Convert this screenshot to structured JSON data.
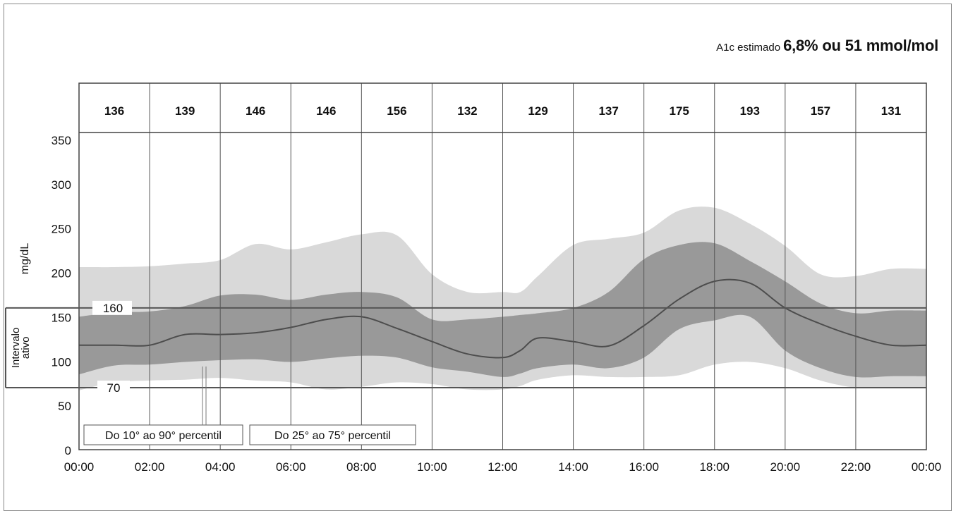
{
  "header": {
    "a1c_label": "A1c estimado",
    "a1c_value": "6,8% ou 51 mmol/mol"
  },
  "colors": {
    "band_outer": "#d9d9d9",
    "band_inner": "#999999",
    "median_line": "#4d4d4d",
    "grid": "#555555"
  },
  "chart_data": {
    "type": "area",
    "title": "",
    "ylabel": "mg/dL",
    "xlabel": "",
    "ylim": [
      0,
      375
    ],
    "yticks": [
      "0",
      "50",
      "100",
      "150",
      "200",
      "250",
      "300",
      "350"
    ],
    "xticks": [
      "00:00",
      "02:00",
      "04:00",
      "06:00",
      "08:00",
      "10:00",
      "12:00",
      "14:00",
      "16:00",
      "18:00",
      "20:00",
      "22:00",
      "00:00"
    ],
    "hourly_means": [
      "136",
      "139",
      "146",
      "146",
      "156",
      "132",
      "129",
      "137",
      "175",
      "193",
      "157",
      "131"
    ],
    "target_range": {
      "label": "Intervalo ativo",
      "low": 70,
      "high": 160,
      "low_label": "70",
      "high_label": "160"
    },
    "legend": [
      "Do 10° ao 90° percentil",
      "Do 25° ao 75° percentil"
    ],
    "x_hours": [
      0,
      1,
      2,
      3,
      4,
      5,
      6,
      7,
      8,
      9,
      10,
      11,
      12,
      12.5,
      13,
      14,
      15,
      16,
      17,
      18,
      19,
      20,
      21,
      22,
      23,
      24
    ],
    "series": [
      {
        "name": "Do 10° ao 90° percentil",
        "role": "p90",
        "values": [
          206,
          206,
          207,
          210,
          214,
          232,
          226,
          234,
          243,
          242,
          198,
          178,
          178,
          178,
          196,
          231,
          238,
          245,
          270,
          273,
          255,
          230,
          198,
          196,
          204,
          204
        ]
      },
      {
        "name": "Do 25° ao 75° percentil",
        "role": "p75",
        "values": [
          150,
          155,
          156,
          162,
          174,
          175,
          169,
          175,
          178,
          172,
          147,
          147,
          150,
          152,
          154,
          160,
          178,
          215,
          231,
          233,
          213,
          190,
          165,
          154,
          157,
          157
        ]
      },
      {
        "name": "Mediana",
        "role": "median",
        "values": [
          118,
          118,
          118,
          130,
          130,
          132,
          138,
          147,
          150,
          137,
          122,
          108,
          104,
          112,
          126,
          122,
          117,
          140,
          170,
          190,
          188,
          160,
          142,
          128,
          118,
          118
        ]
      },
      {
        "name": "Do 25° ao 75° percentil",
        "role": "p25",
        "values": [
          85,
          95,
          96,
          99,
          101,
          102,
          99,
          103,
          106,
          104,
          93,
          88,
          82,
          86,
          92,
          96,
          92,
          104,
          136,
          146,
          150,
          112,
          92,
          82,
          83,
          83
        ]
      },
      {
        "name": "Do 10° ao 90° percentil",
        "role": "p10",
        "values": [
          67,
          76,
          78,
          79,
          81,
          78,
          76,
          68,
          71,
          76,
          74,
          68,
          68,
          72,
          79,
          84,
          82,
          82,
          84,
          96,
          99,
          92,
          78,
          70,
          70,
          70
        ]
      }
    ]
  }
}
